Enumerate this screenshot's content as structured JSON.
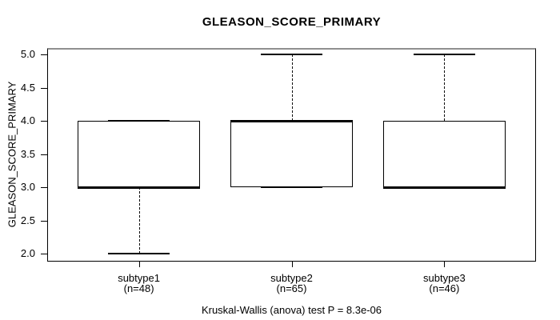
{
  "chart_data": {
    "type": "boxplot",
    "title": "GLEASON_SCORE_PRIMARY",
    "ylabel": "GLEASON_SCORE_PRIMARY",
    "annotation": "Kruskal-Wallis (anova) test P = 8.3e-06",
    "ylim": [
      1.88,
      5.1
    ],
    "xlim": [
      0.4,
      3.6
    ],
    "yticks": [
      "2.0",
      "2.5",
      "3.0",
      "3.5",
      "4.0",
      "4.5",
      "5.0"
    ],
    "box_width": 0.8,
    "grid": false,
    "legend": null,
    "colors": {
      "line": "#000000",
      "frame_top": "#8f8f8f",
      "background": "#ffffff"
    },
    "boxes": [
      {
        "pos": 1,
        "label": "subtype1",
        "sublabel": "(n=48)",
        "n": 48,
        "min": 2,
        "q1": 3,
        "median": 3,
        "q3": 4,
        "max": 4
      },
      {
        "pos": 2,
        "label": "subtype2",
        "sublabel": "(n=65)",
        "n": 65,
        "min": 3,
        "q1": 3,
        "median": 4,
        "q3": 4,
        "max": 5
      },
      {
        "pos": 3,
        "label": "subtype3",
        "sublabel": "(n=46)",
        "n": 46,
        "min": 3,
        "q1": 3,
        "median": 3,
        "q3": 4,
        "max": 5
      }
    ]
  }
}
